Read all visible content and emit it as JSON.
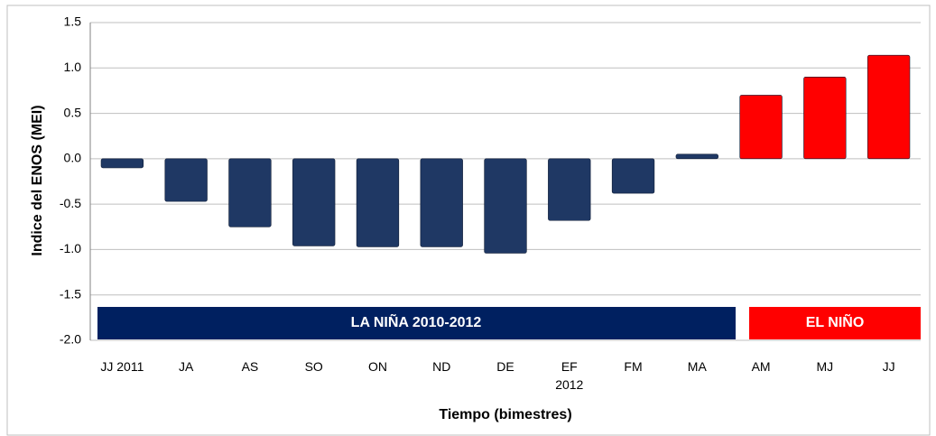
{
  "chart_data": {
    "type": "bar",
    "categories": [
      "JJ  2011",
      "JA",
      "AS",
      "SO",
      "ON",
      "ND",
      "DE",
      "EF\n2012",
      "FM",
      "MA",
      "AM",
      "MJ",
      "JJ"
    ],
    "values": [
      -0.1,
      -0.47,
      -0.75,
      -0.96,
      -0.97,
      -0.97,
      -1.04,
      -0.68,
      -0.38,
      0.05,
      0.7,
      0.9,
      1.14
    ],
    "colors": [
      "#1f3864",
      "#1f3864",
      "#1f3864",
      "#1f3864",
      "#1f3864",
      "#1f3864",
      "#1f3864",
      "#1f3864",
      "#1f3864",
      "#1f3864",
      "#ff0000",
      "#ff0000",
      "#ff0000"
    ],
    "ylim": [
      -2.0,
      1.5
    ],
    "yticks": [
      1.5,
      {
        "value": 1.0,
        "label": "1.0"
      },
      0.5,
      {
        "value": 0.0,
        "label": "0.0"
      },
      -0.5,
      {
        "value": -1.0,
        "label": "-1.0"
      },
      -1.5,
      {
        "value": -2.0,
        "label": "-2.0"
      }
    ],
    "grid": true,
    "y_label": "Indice del ENOS (MEI)",
    "x_label": "Tiempo (bimestres)",
    "annotations": [
      {
        "text": "LA NIÑA 2010-2012",
        "color": "#002060"
      },
      {
        "text": "EL NIÑO",
        "color": "#ff0000"
      }
    ]
  }
}
